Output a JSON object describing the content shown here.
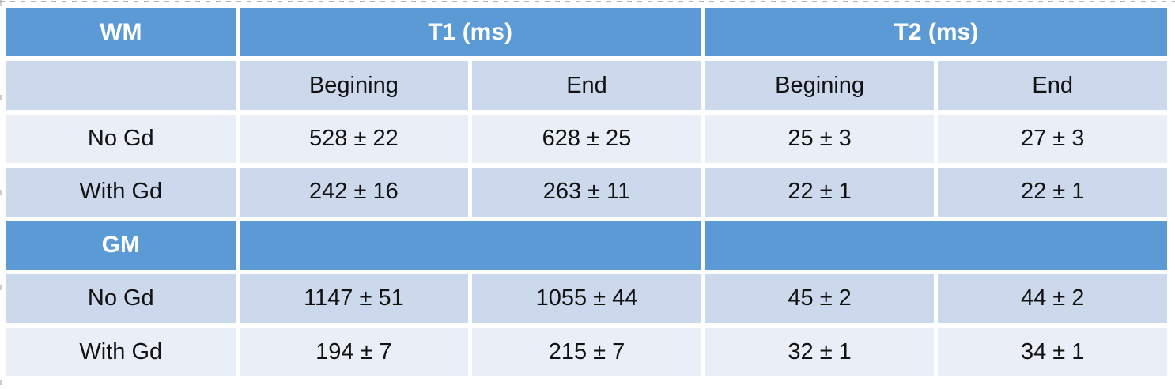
{
  "table": {
    "title_semantics": "Relaxation times table",
    "group_headers": [
      "T1 (ms)",
      "T2 (ms)"
    ],
    "sub_headers": [
      "Begining",
      "End",
      "Begining",
      "End"
    ],
    "sections": [
      {
        "label": "WM",
        "rows": [
          {
            "label": "No Gd",
            "values": [
              "528 ± 22",
              "628 ± 25",
              "25 ± 3",
              "27 ± 3"
            ]
          },
          {
            "label": "With Gd",
            "values": [
              "242 ± 16",
              "263 ± 11",
              "22 ± 1",
              "22 ± 1"
            ]
          }
        ]
      },
      {
        "label": "GM",
        "rows": [
          {
            "label": "No Gd",
            "values": [
              "1147 ± 51",
              "1055 ± 44",
              "45 ± 2",
              "44 ± 2"
            ]
          },
          {
            "label": "With Gd",
            "values": [
              "194 ± 7",
              "215 ± 7",
              "32 ± 1",
              "34 ± 1"
            ]
          }
        ]
      }
    ],
    "colors": {
      "header_blue": "#5b9ad4",
      "band_dark": "#ccd9ec",
      "band_light": "#e9eef7",
      "header_text": "#ffffff",
      "body_text": "#121212"
    }
  }
}
